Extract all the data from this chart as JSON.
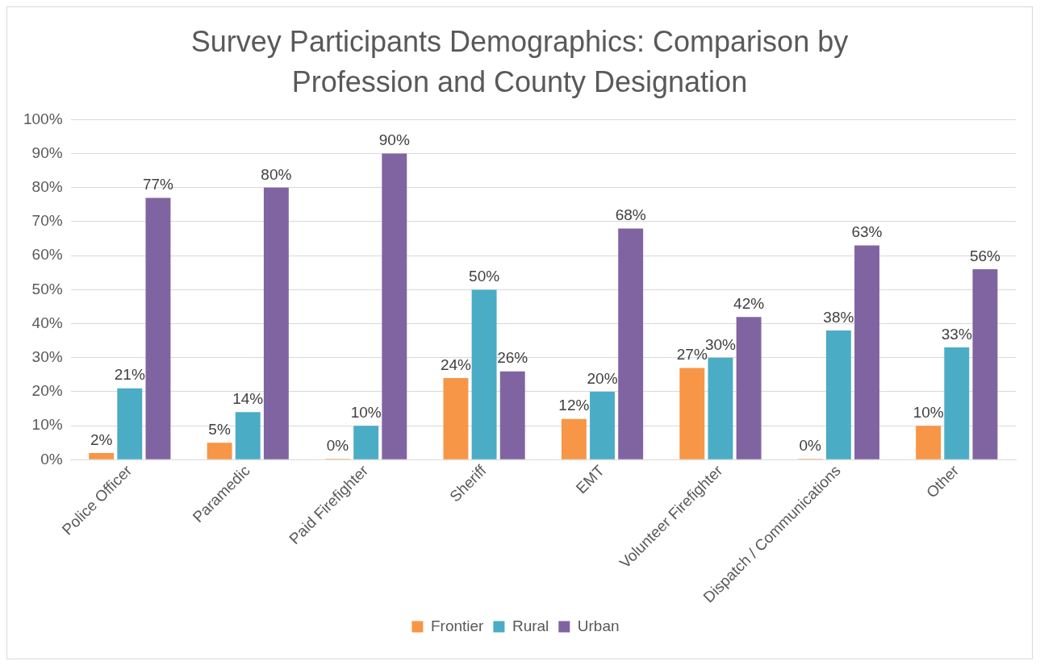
{
  "chart_data": {
    "type": "bar",
    "title": "Survey Participants Demographics: Comparison by Profession and County Designation",
    "categories": [
      "Police Officer",
      "Paramedic",
      "Paid Firefighter",
      "Sheriff",
      "EMT",
      "Volunteer Firefighter",
      "Dispatch / Communications",
      "Other"
    ],
    "series": [
      {
        "name": "Frontier",
        "color": "#f79646",
        "values": [
          2,
          5,
          0,
          24,
          12,
          27,
          0,
          10
        ],
        "value_labels": [
          "2%",
          "5%",
          "0%",
          "24%",
          "12%",
          "27%",
          "0%",
          "10%"
        ]
      },
      {
        "name": "Rural",
        "color": "#4bacc6",
        "values": [
          21,
          14,
          10,
          50,
          20,
          30,
          38,
          33
        ],
        "value_labels": [
          "21%",
          "14%",
          "10%",
          "50%",
          "20%",
          "30%",
          "38%",
          "33%"
        ]
      },
      {
        "name": "Urban",
        "color": "#8064a2",
        "values": [
          77,
          80,
          90,
          26,
          68,
          42,
          63,
          56
        ],
        "value_labels": [
          "77%",
          "80%",
          "90%",
          "26%",
          "68%",
          "42%",
          "63%",
          "56%"
        ]
      }
    ],
    "ylim": [
      0,
      100
    ],
    "yticks": [
      {
        "value": 0,
        "label": "0%"
      },
      {
        "value": 10,
        "label": "10%"
      },
      {
        "value": 20,
        "label": "20%"
      },
      {
        "value": 30,
        "label": "30%"
      },
      {
        "value": 40,
        "label": "40%"
      },
      {
        "value": 50,
        "label": "50%"
      },
      {
        "value": 60,
        "label": "60%"
      },
      {
        "value": 70,
        "label": "70%"
      },
      {
        "value": 80,
        "label": "80%"
      },
      {
        "value": 90,
        "label": "90%"
      },
      {
        "value": 100,
        "label": "100%"
      }
    ],
    "grid": "y",
    "legend": "bottom"
  }
}
